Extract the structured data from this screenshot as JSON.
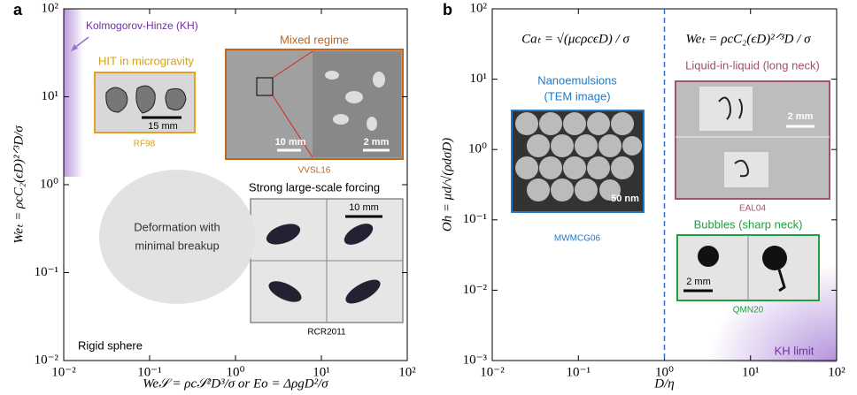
{
  "chart_data": [
    {
      "type": "regime-map",
      "panel": "a",
      "xlabel": "We𝒮 = ρc𝒮²D³/σ  or  Eo = ΔρgD²/σ",
      "ylabel": "Weₜ = ρcC₂(ϵD)²ᐟ³D/σ",
      "xlim": [
        0.01,
        100
      ],
      "ylim": [
        0.01,
        100
      ],
      "log": true,
      "xticks": [
        {
          "value": 0.01,
          "label": "10⁻²"
        },
        {
          "value": 0.1,
          "label": "10⁻¹"
        },
        {
          "value": 1,
          "label": "10⁰"
        },
        {
          "value": 10,
          "label": "10¹"
        },
        {
          "value": 100,
          "label": "10²"
        }
      ],
      "yticks": [
        {
          "value": 0.01,
          "label": "10⁻²"
        },
        {
          "value": 0.1,
          "label": "10⁻¹"
        },
        {
          "value": 1,
          "label": "10⁰"
        },
        {
          "value": 10,
          "label": "10¹"
        },
        {
          "value": 100,
          "label": "10²"
        }
      ],
      "annotations": {
        "kh": "Kolmogorov-Hinze (KH)",
        "hit": "HIT in microgravity",
        "hit_scale": "15 mm",
        "hit_ref": "RF98",
        "mixed": "Mixed regime",
        "mixed_scale1": "10 mm",
        "mixed_scale2": "2 mm",
        "mixed_ref": "VVSL16",
        "strong": "Strong large-scale forcing",
        "strong_scale": "10 mm",
        "strong_ref": "RCR2011",
        "deform": [
          "Deformation with",
          "minimal breakup"
        ],
        "rigid": "Rigid sphere"
      }
    },
    {
      "type": "regime-map",
      "panel": "b",
      "xlabel": "D/η",
      "ylabel": "Oh = μd/√(ρdσD)",
      "xlim": [
        0.01,
        100
      ],
      "ylim": [
        0.001,
        100
      ],
      "log": true,
      "vline": 1,
      "xticks": [
        {
          "value": 0.01,
          "label": "10⁻²"
        },
        {
          "value": 0.1,
          "label": "10⁻¹"
        },
        {
          "value": 1,
          "label": "10⁰"
        },
        {
          "value": 10,
          "label": "10¹"
        },
        {
          "value": 100,
          "label": "10²"
        }
      ],
      "yticks": [
        {
          "value": 0.001,
          "label": "10⁻³"
        },
        {
          "value": 0.01,
          "label": "10⁻²"
        },
        {
          "value": 0.1,
          "label": "10⁻¹"
        },
        {
          "value": 1,
          "label": "10⁰"
        },
        {
          "value": 10,
          "label": "10¹"
        },
        {
          "value": 100,
          "label": "10²"
        }
      ],
      "annotations": {
        "ca": "Caₜ = √(μcρcϵD) / σ",
        "we": "Weₜ = ρcC₂(ϵD)²ᐟ³D / σ",
        "nano": [
          "Nanoemulsions",
          "(TEM image)"
        ],
        "nano_scale": "50 nm",
        "nano_ref": "MWMCG06",
        "liquid": "Liquid-in-liquid (long neck)",
        "liquid_scale": "2 mm",
        "liquid_ref": "EAL04",
        "bubbles": "Bubbles (sharp neck)",
        "bubbles_scale": "2 mm",
        "bubbles_ref": "QMN20",
        "kh": "KH limit"
      }
    }
  ]
}
